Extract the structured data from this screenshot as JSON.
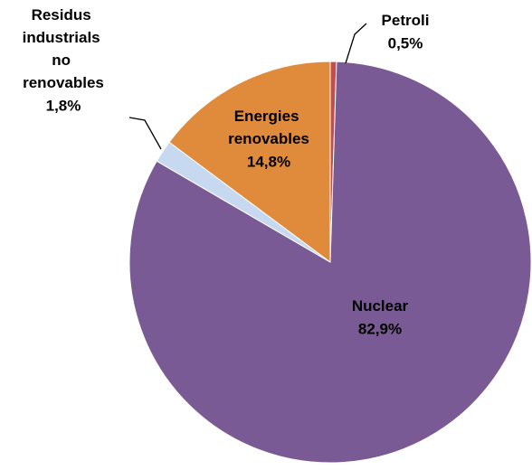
{
  "chart_data": {
    "type": "pie",
    "categories": [
      "Petroli",
      "Nuclear",
      "Residus industrials no renovables",
      "Energies renovables"
    ],
    "values": [
      0.5,
      82.9,
      1.8,
      14.8
    ],
    "value_labels": [
      "0,5%",
      "82,9%",
      "1,8%",
      "14,8%"
    ],
    "colors": [
      "#c0504d",
      "#7a5a94",
      "#c6d9f1",
      "#e08a3c"
    ]
  }
}
